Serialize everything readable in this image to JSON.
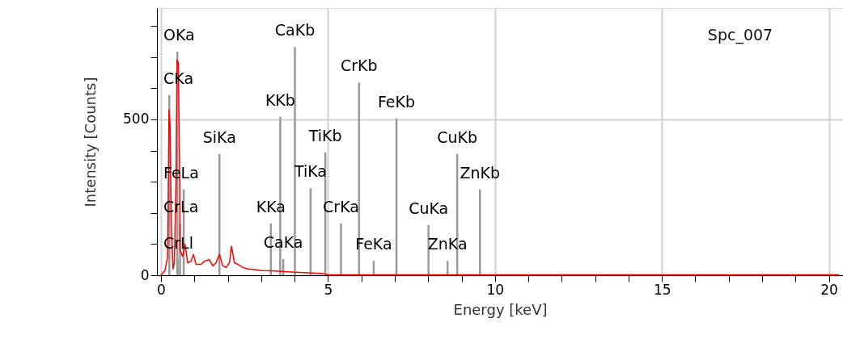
{
  "chart_data": {
    "type": "line",
    "xlabel": "Energy [keV]",
    "ylabel": "Intensity [Counts]",
    "xlim": [
      0,
      20.3
    ],
    "ylim": [
      0,
      857
    ],
    "xticks": [
      0,
      {
        "value": 1,
        "label": null
      },
      {
        "value": 2,
        "label": null
      },
      {
        "value": 3,
        "label": null
      },
      {
        "value": 4,
        "label": null
      },
      5,
      {
        "value": 6,
        "label": null
      },
      {
        "value": 7,
        "label": null
      },
      {
        "value": 8,
        "label": null
      },
      {
        "value": 9,
        "label": null
      },
      10,
      {
        "value": 11,
        "label": null
      },
      {
        "value": 12,
        "label": null
      },
      {
        "value": 13,
        "label": null
      },
      {
        "value": 14,
        "label": null
      },
      15,
      {
        "value": 16,
        "label": null
      },
      {
        "value": 17,
        "label": null
      },
      {
        "value": 18,
        "label": null
      },
      {
        "value": 19,
        "label": null
      },
      20
    ],
    "yticks": [
      0,
      {
        "value": 100,
        "label": null
      },
      {
        "value": 200,
        "label": null
      },
      {
        "value": 300,
        "label": null
      },
      {
        "value": 400,
        "label": null
      },
      500,
      {
        "value": 600,
        "label": null
      },
      {
        "value": 700,
        "label": null
      },
      {
        "value": 800,
        "label": null
      }
    ],
    "grid": true,
    "series": [
      {
        "type": "bar",
        "color": "#999999",
        "x": [
          0.25,
          0.49,
          0.5,
          0.57,
          0.68,
          1.75,
          3.29,
          3.57,
          3.66,
          4.01,
          4.48,
          4.92,
          5.39,
          5.93,
          6.37,
          7.05,
          8.01,
          8.58,
          8.87,
          9.55
        ],
        "values": [
          578,
          717,
          49,
          166,
          275,
          389,
          166,
          508,
          52,
          732,
          279,
          394,
          166,
          618,
          46,
          503,
          161,
          46,
          389,
          275
        ]
      },
      {
        "color": "#ff0000",
        "x": [
          0.0,
          0.12,
          0.2,
          0.24,
          0.27,
          0.31,
          0.36,
          0.4,
          0.45,
          0.48,
          0.52,
          0.56,
          0.57,
          0.65,
          0.72,
          0.8,
          0.9,
          0.97,
          1.05,
          1.2,
          1.3,
          1.45,
          1.55,
          1.65,
          1.75,
          1.85,
          1.95,
          2.05,
          2.11,
          2.2,
          2.3,
          2.45,
          2.6,
          2.8,
          3.0,
          3.3,
          3.6,
          4.0,
          4.4,
          4.8,
          5.0,
          6,
          8,
          10,
          12,
          14,
          16,
          18,
          20.3
        ],
        "values": [
          0,
          15,
          60,
          530,
          480,
          150,
          20,
          40,
          300,
          690,
          680,
          300,
          80,
          60,
          100,
          40,
          45,
          67,
          35,
          35,
          45,
          50,
          30,
          40,
          67,
          30,
          25,
          40,
          93,
          40,
          35,
          25,
          20,
          18,
          15,
          14,
          12,
          10,
          8,
          6,
          2,
          1,
          1,
          1,
          1,
          1,
          1,
          1,
          1
        ]
      }
    ],
    "annotations": [
      {
        "text": "CKa",
        "x": 0.25,
        "y": 578
      },
      {
        "text": "OKa",
        "x": 0.49,
        "y": 717
      },
      {
        "text": "CrLl",
        "x": 0.5,
        "y": 49
      },
      {
        "text": "CrLa",
        "x": 0.57,
        "y": 166
      },
      {
        "text": "FeLa",
        "x": 0.68,
        "y": 275
      },
      {
        "text": "SiKa",
        "x": 1.75,
        "y": 389
      },
      {
        "text": "KKa",
        "x": 3.29,
        "y": 166
      },
      {
        "text": "KKb",
        "x": 3.57,
        "y": 508
      },
      {
        "text": "CaKa",
        "x": 3.66,
        "y": 52
      },
      {
        "text": "CaKb",
        "x": 4.01,
        "y": 732
      },
      {
        "text": "TiKa",
        "x": 4.48,
        "y": 279
      },
      {
        "text": "TiKb",
        "x": 4.92,
        "y": 394
      },
      {
        "text": "CrKa",
        "x": 5.39,
        "y": 166
      },
      {
        "text": "CrKb",
        "x": 5.93,
        "y": 618
      },
      {
        "text": "FeKa",
        "x": 6.37,
        "y": 46
      },
      {
        "text": "FeKb",
        "x": 7.05,
        "y": 503
      },
      {
        "text": "CuKa",
        "x": 8.01,
        "y": 161
      },
      {
        "text": "ZnKa",
        "x": 8.58,
        "y": 46
      },
      {
        "text": "CuKb",
        "x": 8.87,
        "y": 389
      },
      {
        "text": "ZnKb",
        "x": 9.55,
        "y": 275
      },
      "Spc_007"
    ]
  }
}
